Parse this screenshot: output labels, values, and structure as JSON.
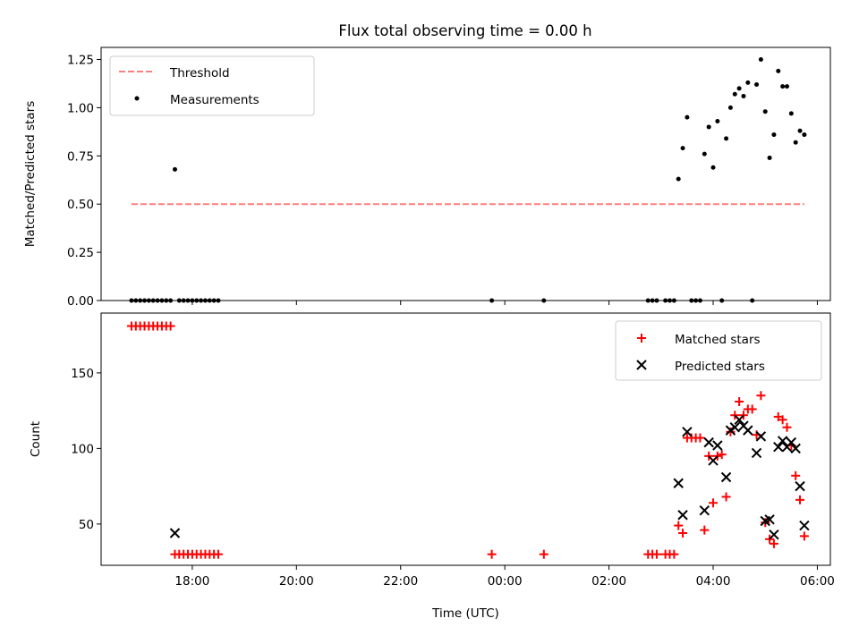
{
  "title": "Flux total observing time = 0.00 h",
  "colors": {
    "threshold": "#ff7f7f",
    "measurements": "#000000",
    "matched": "#ff0000",
    "predicted": "#000000"
  },
  "chart_data": [
    {
      "type": "scatter",
      "ylabel": "Matched/Predicted stars",
      "ylim": [
        0.0,
        1.3125
      ],
      "yticks": [
        "0.00",
        "0.25",
        "0.50",
        "0.75",
        "1.00",
        "1.25"
      ],
      "legend": {
        "placement": "top-left",
        "threshold_label": "Threshold",
        "measurements_label": "Measurements"
      },
      "threshold": {
        "x_start": "16:50",
        "x_end": "05:45",
        "y": 0.5
      },
      "measurements": [
        [
          "16:50",
          0.0
        ],
        [
          "16:55",
          0.0
        ],
        [
          "17:00",
          0.0
        ],
        [
          "17:05",
          0.0
        ],
        [
          "17:10",
          0.0
        ],
        [
          "17:15",
          0.0
        ],
        [
          "17:20",
          0.0
        ],
        [
          "17:25",
          0.0
        ],
        [
          "17:30",
          0.0
        ],
        [
          "17:35",
          0.0
        ],
        [
          "17:40",
          0.68
        ],
        [
          "17:45",
          0.0
        ],
        [
          "17:50",
          0.0
        ],
        [
          "17:55",
          0.0
        ],
        [
          "18:00",
          0.0
        ],
        [
          "18:05",
          0.0
        ],
        [
          "18:10",
          0.0
        ],
        [
          "18:15",
          0.0
        ],
        [
          "18:20",
          0.0
        ],
        [
          "18:25",
          0.0
        ],
        [
          "18:30",
          0.0
        ],
        [
          "23:45",
          0.0
        ],
        [
          "00:45",
          0.0
        ],
        [
          "02:45",
          0.0
        ],
        [
          "02:50",
          0.0
        ],
        [
          "02:55",
          0.0
        ],
        [
          "03:05",
          0.0
        ],
        [
          "03:10",
          0.0
        ],
        [
          "03:15",
          0.0
        ],
        [
          "03:20",
          0.63
        ],
        [
          "03:25",
          0.79
        ],
        [
          "03:30",
          0.95
        ],
        [
          "03:35",
          0.0
        ],
        [
          "03:40",
          0.0
        ],
        [
          "03:45",
          0.0
        ],
        [
          "03:50",
          0.76
        ],
        [
          "03:55",
          0.9
        ],
        [
          "04:00",
          0.69
        ],
        [
          "04:05",
          0.93
        ],
        [
          "04:10",
          0.0
        ],
        [
          "04:15",
          0.84
        ],
        [
          "04:20",
          1.0
        ],
        [
          "04:25",
          1.07
        ],
        [
          "04:30",
          1.1
        ],
        [
          "04:35",
          1.06
        ],
        [
          "04:40",
          1.13
        ],
        [
          "04:45",
          0.0
        ],
        [
          "04:50",
          1.12
        ],
        [
          "04:55",
          1.25
        ],
        [
          "05:00",
          0.98
        ],
        [
          "05:05",
          0.74
        ],
        [
          "05:10",
          0.86
        ],
        [
          "05:15",
          1.19
        ],
        [
          "05:20",
          1.11
        ],
        [
          "05:25",
          1.11
        ],
        [
          "05:30",
          0.97
        ],
        [
          "05:35",
          0.82
        ],
        [
          "05:40",
          0.88
        ],
        [
          "05:45",
          0.86
        ]
      ]
    },
    {
      "type": "scatter",
      "xlabel": "Time (UTC)",
      "ylabel": "Count",
      "ylim": [
        22.7,
        189.6
      ],
      "yticks": [
        "50",
        "100",
        "150"
      ],
      "xlim": [
        "16:15",
        "06:15"
      ],
      "xticks": [
        "18:00",
        "20:00",
        "22:00",
        "00:00",
        "02:00",
        "04:00",
        "06:00"
      ],
      "legend": {
        "placement": "top-right",
        "matched_label": "Matched stars",
        "predicted_label": "Predicted stars"
      },
      "matched": [
        [
          "16:50",
          181
        ],
        [
          "16:55",
          181
        ],
        [
          "17:00",
          181
        ],
        [
          "17:05",
          181
        ],
        [
          "17:10",
          181
        ],
        [
          "17:15",
          181
        ],
        [
          "17:20",
          181
        ],
        [
          "17:25",
          181
        ],
        [
          "17:30",
          181
        ],
        [
          "17:35",
          181
        ],
        [
          "17:40",
          30
        ],
        [
          "17:45",
          30
        ],
        [
          "17:50",
          30
        ],
        [
          "17:55",
          30
        ],
        [
          "18:00",
          30
        ],
        [
          "18:05",
          30
        ],
        [
          "18:10",
          30
        ],
        [
          "18:15",
          30
        ],
        [
          "18:20",
          30
        ],
        [
          "18:25",
          30
        ],
        [
          "18:30",
          30
        ],
        [
          "23:45",
          30
        ],
        [
          "00:45",
          30
        ],
        [
          "02:45",
          30
        ],
        [
          "02:50",
          30
        ],
        [
          "02:55",
          30
        ],
        [
          "03:05",
          30
        ],
        [
          "03:10",
          30
        ],
        [
          "03:15",
          30
        ],
        [
          "03:20",
          49
        ],
        [
          "03:25",
          44
        ],
        [
          "03:30",
          107
        ],
        [
          "03:35",
          107
        ],
        [
          "03:40",
          107
        ],
        [
          "03:45",
          107
        ],
        [
          "03:50",
          46
        ],
        [
          "03:55",
          95
        ],
        [
          "04:00",
          64
        ],
        [
          "04:05",
          95
        ],
        [
          "04:10",
          96
        ],
        [
          "04:15",
          68
        ],
        [
          "04:20",
          111
        ],
        [
          "04:25",
          122
        ],
        [
          "04:30",
          131
        ],
        [
          "04:35",
          122
        ],
        [
          "04:40",
          126
        ],
        [
          "04:45",
          126
        ],
        [
          "04:50",
          109
        ],
        [
          "04:55",
          135
        ],
        [
          "05:00",
          51
        ],
        [
          "05:05",
          40
        ],
        [
          "05:10",
          37
        ],
        [
          "05:15",
          121
        ],
        [
          "05:20",
          119
        ],
        [
          "05:25",
          114
        ],
        [
          "05:30",
          102
        ],
        [
          "05:35",
          82
        ],
        [
          "05:40",
          66
        ],
        [
          "05:45",
          42
        ]
      ],
      "predicted": [
        [
          "17:40",
          44
        ],
        [
          "03:20",
          77
        ],
        [
          "03:25",
          56
        ],
        [
          "03:30",
          111
        ],
        [
          "03:50",
          59
        ],
        [
          "03:55",
          104
        ],
        [
          "04:00",
          92
        ],
        [
          "04:05",
          102
        ],
        [
          "04:15",
          81
        ],
        [
          "04:20",
          112
        ],
        [
          "04:25",
          114
        ],
        [
          "04:30",
          119
        ],
        [
          "04:35",
          115
        ],
        [
          "04:40",
          112
        ],
        [
          "04:50",
          97
        ],
        [
          "04:55",
          108
        ],
        [
          "05:00",
          52
        ],
        [
          "05:05",
          53
        ],
        [
          "05:10",
          43
        ],
        [
          "05:15",
          101
        ],
        [
          "05:20",
          105
        ],
        [
          "05:25",
          101
        ],
        [
          "05:30",
          104
        ],
        [
          "05:35",
          100
        ],
        [
          "05:40",
          75
        ],
        [
          "05:45",
          49
        ]
      ]
    }
  ]
}
